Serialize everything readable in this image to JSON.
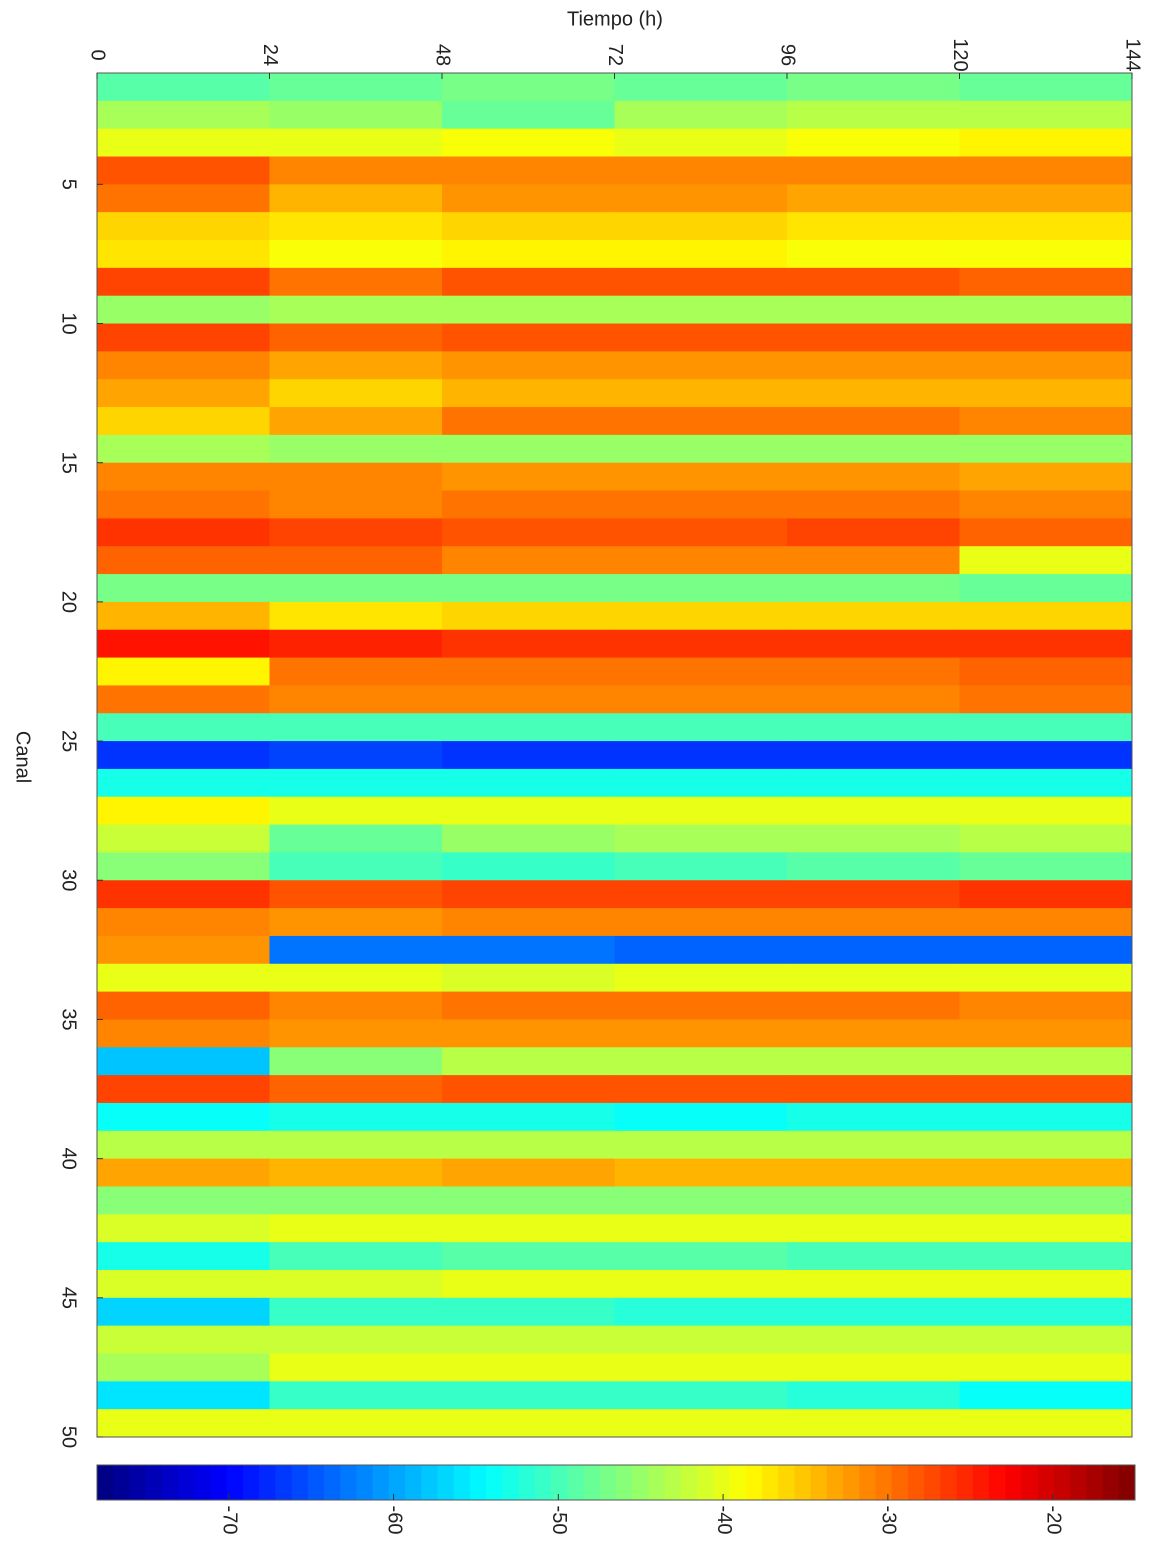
{
  "chart_data": {
    "type": "heatmap",
    "xlabel": "Tiempo (h)",
    "ylabel": "Canal",
    "xlim": [
      0,
      144
    ],
    "xticks": [
      0,
      24,
      48,
      72,
      96,
      120,
      144
    ],
    "ylim": [
      1,
      50
    ],
    "yticks": [
      5,
      10,
      15,
      20,
      25,
      30,
      35,
      40,
      45,
      50
    ],
    "xbins": [
      0,
      24,
      48,
      72,
      96,
      120,
      144
    ],
    "channels": [
      1,
      2,
      3,
      4,
      5,
      6,
      7,
      8,
      9,
      10,
      11,
      12,
      13,
      14,
      15,
      16,
      17,
      18,
      19,
      20,
      21,
      22,
      23,
      24,
      25,
      26,
      27,
      28,
      29,
      30,
      31,
      32,
      33,
      34,
      35,
      36,
      37,
      38,
      39,
      40,
      41,
      42,
      43,
      44,
      45,
      46,
      47,
      48,
      49
    ],
    "colormap": "jet",
    "clim": [
      -78,
      -15
    ],
    "cticks": [
      -70,
      -60,
      -50,
      -40,
      -30,
      -20
    ],
    "z": [
      [
        -49,
        -48,
        -47,
        -48,
        -47,
        -48
      ],
      [
        -44,
        -45,
        -48,
        -44,
        -43,
        -43
      ],
      [
        -40,
        -40,
        -39,
        -40,
        -39,
        -38
      ],
      [
        -28,
        -31,
        -31,
        -31,
        -31,
        -31
      ],
      [
        -30,
        -34,
        -32,
        -32,
        -33,
        -33
      ],
      [
        -36,
        -37,
        -36,
        -36,
        -37,
        -37
      ],
      [
        -37,
        -39,
        -38,
        -38,
        -39,
        -39
      ],
      [
        -27,
        -30,
        -28,
        -28,
        -28,
        -29
      ],
      [
        -45,
        -44,
        -44,
        -44,
        -44,
        -44
      ],
      [
        -27,
        -29,
        -28,
        -28,
        -28,
        -28
      ],
      [
        -31,
        -33,
        -32,
        -32,
        -32,
        -32
      ],
      [
        -33,
        -36,
        -34,
        -34,
        -34,
        -34
      ],
      [
        -36,
        -33,
        -30,
        -30,
        -30,
        -31
      ],
      [
        -44,
        -45,
        -45,
        -45,
        -45,
        -45
      ],
      [
        -31,
        -31,
        -32,
        -32,
        -32,
        -33
      ],
      [
        -30,
        -31,
        -30,
        -30,
        -30,
        -31
      ],
      [
        -26,
        -27,
        -28,
        -28,
        -27,
        -29
      ],
      [
        -29,
        -29,
        -31,
        -31,
        -31,
        -40
      ],
      [
        -47,
        -47,
        -47,
        -47,
        -47,
        -48
      ],
      [
        -34,
        -37,
        -36,
        -36,
        -36,
        -36
      ],
      [
        -24,
        -25,
        -26,
        -26,
        -26,
        -26
      ],
      [
        -38,
        -30,
        -30,
        -30,
        -30,
        -29
      ],
      [
        -30,
        -31,
        -31,
        -31,
        -31,
        -30
      ],
      [
        -50,
        -50,
        -50,
        -50,
        -50,
        -50
      ],
      [
        -67,
        -66,
        -67,
        -67,
        -67,
        -67
      ],
      [
        -53,
        -53,
        -53,
        -53,
        -53,
        -53
      ],
      [
        -38,
        -40,
        -40,
        -40,
        -40,
        -40
      ],
      [
        -42,
        -48,
        -45,
        -44,
        -44,
        -43
      ],
      [
        -46,
        -50,
        -51,
        -50,
        -49,
        -48
      ],
      [
        -26,
        -28,
        -27,
        -27,
        -27,
        -26
      ],
      [
        -31,
        -32,
        -31,
        -31,
        -31,
        -31
      ],
      [
        -32,
        -63,
        -63,
        -64,
        -64,
        -64
      ],
      [
        -40,
        -40,
        -41,
        -40,
        -40,
        -40
      ],
      [
        -29,
        -31,
        -30,
        -30,
        -30,
        -31
      ],
      [
        -31,
        -32,
        -32,
        -32,
        -32,
        -32
      ],
      [
        -58,
        -46,
        -43,
        -43,
        -43,
        -43
      ],
      [
        -27,
        -29,
        -28,
        -28,
        -28,
        -28
      ],
      [
        -54,
        -53,
        -53,
        -54,
        -53,
        -53
      ],
      [
        -43,
        -43,
        -43,
        -43,
        -43,
        -43
      ],
      [
        -33,
        -34,
        -33,
        -34,
        -34,
        -34
      ],
      [
        -46,
        -46,
        -46,
        -46,
        -46,
        -46
      ],
      [
        -41,
        -40,
        -40,
        -40,
        -40,
        -40
      ],
      [
        -53,
        -50,
        -49,
        -49,
        -50,
        -50
      ],
      [
        -41,
        -41,
        -40,
        -40,
        -40,
        -40
      ],
      [
        -57,
        -51,
        -51,
        -52,
        -52,
        -52
      ],
      [
        -42,
        -42,
        -42,
        -42,
        -42,
        -42
      ],
      [
        -44,
        -40,
        -40,
        -40,
        -40,
        -40
      ],
      [
        -56,
        -51,
        -51,
        -51,
        -52,
        -54
      ],
      [
        -40,
        -40,
        -40,
        -40,
        -40,
        -40
      ]
    ]
  }
}
